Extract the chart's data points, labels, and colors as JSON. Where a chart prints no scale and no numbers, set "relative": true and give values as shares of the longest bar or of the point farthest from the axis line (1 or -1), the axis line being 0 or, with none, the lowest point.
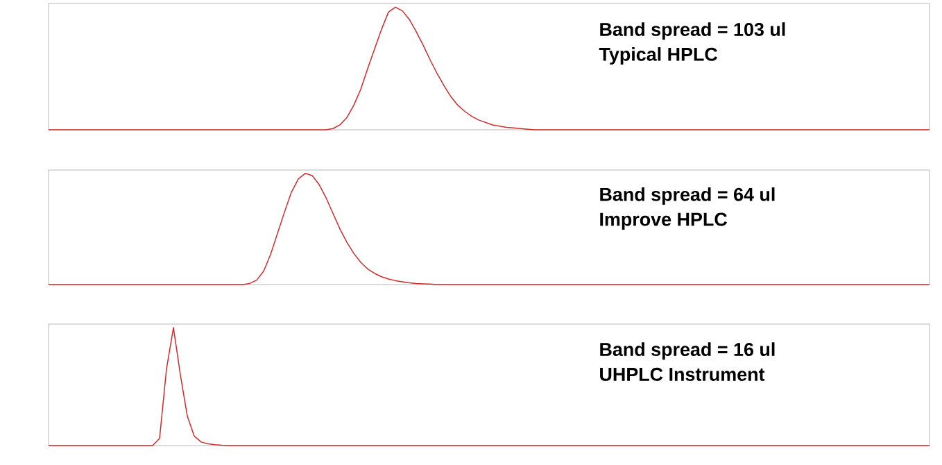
{
  "chart_data": [
    {
      "type": "line",
      "relative": true,
      "color": "#d42a2a",
      "categories": [
        null,
        null,
        null,
        null,
        null,
        null,
        null,
        null,
        null,
        null,
        null,
        null,
        null,
        null,
        null,
        null,
        null,
        null,
        null,
        null,
        null,
        null,
        null,
        null,
        null,
        null,
        null,
        null,
        null,
        null,
        null,
        null,
        null,
        null,
        null,
        null,
        null,
        null,
        null,
        null,
        null,
        null,
        null,
        null,
        null,
        null,
        null,
        null,
        null,
        null,
        null,
        null,
        null,
        null,
        null,
        null,
        null,
        null,
        null,
        null,
        null,
        null,
        null,
        null,
        null,
        null,
        null,
        null,
        null,
        null,
        null,
        null,
        null,
        null,
        null,
        null,
        null,
        null,
        null,
        null,
        null,
        null,
        null,
        null,
        null,
        null,
        null,
        null,
        null,
        null,
        null,
        null,
        null,
        null,
        null,
        null,
        null,
        null,
        null,
        null,
        null,
        null,
        null,
        null,
        null,
        null,
        null,
        null,
        null,
        null,
        null,
        null,
        null,
        null,
        null,
        null,
        null,
        null,
        null,
        null,
        null,
        null,
        null,
        null,
        null,
        null,
        null,
        null
      ],
      "values": [
        0,
        0,
        0,
        0,
        0,
        0,
        0,
        0,
        0,
        0,
        0,
        0,
        0,
        0,
        0,
        0,
        0,
        0,
        0,
        0,
        0,
        0,
        0,
        0,
        0,
        0,
        0,
        0,
        0,
        0,
        0,
        0,
        0,
        0,
        0,
        0,
        0,
        0,
        0,
        0,
        0,
        0.01,
        0.04,
        0.1,
        0.2,
        0.33,
        0.5,
        0.66,
        0.82,
        0.96,
        1,
        0.97,
        0.9,
        0.8,
        0.69,
        0.57,
        0.46,
        0.36,
        0.27,
        0.2,
        0.15,
        0.11,
        0.08,
        0.06,
        0.04,
        0.03,
        0.02,
        0.015,
        0.01,
        0.005,
        0,
        0,
        0,
        0,
        0,
        0,
        0,
        0,
        0,
        0,
        0,
        0,
        0,
        0,
        0,
        0,
        0,
        0,
        0,
        0,
        0,
        0,
        0,
        0,
        0,
        0,
        0,
        0,
        0,
        0,
        0,
        0,
        0,
        0,
        0,
        0,
        0,
        0,
        0,
        0,
        0,
        0,
        0,
        0,
        0,
        0,
        0,
        0,
        0,
        0,
        0,
        0,
        0,
        0,
        0,
        0,
        0,
        0
      ],
      "annotations": [
        "Band spread = 103 ul",
        "Typical HPLC"
      ]
    },
    {
      "type": "line",
      "relative": true,
      "color": "#d42a2a",
      "categories": [
        null,
        null,
        null,
        null,
        null,
        null,
        null,
        null,
        null,
        null,
        null,
        null,
        null,
        null,
        null,
        null,
        null,
        null,
        null,
        null,
        null,
        null,
        null,
        null,
        null,
        null,
        null,
        null,
        null,
        null,
        null,
        null,
        null,
        null,
        null,
        null,
        null,
        null,
        null,
        null,
        null,
        null,
        null,
        null,
        null,
        null,
        null,
        null,
        null,
        null,
        null,
        null,
        null,
        null,
        null,
        null,
        null,
        null,
        null,
        null,
        null,
        null,
        null,
        null,
        null,
        null,
        null,
        null,
        null,
        null,
        null,
        null,
        null,
        null,
        null,
        null,
        null,
        null,
        null,
        null,
        null,
        null,
        null,
        null,
        null,
        null,
        null,
        null,
        null,
        null,
        null,
        null,
        null,
        null,
        null,
        null,
        null,
        null,
        null,
        null,
        null,
        null,
        null,
        null,
        null,
        null,
        null,
        null,
        null,
        null,
        null,
        null,
        null,
        null,
        null,
        null,
        null,
        null,
        null,
        null,
        null,
        null,
        null,
        null,
        null,
        null,
        null,
        null
      ],
      "values": [
        0,
        0,
        0,
        0,
        0,
        0,
        0,
        0,
        0,
        0,
        0,
        0,
        0,
        0,
        0,
        0,
        0,
        0,
        0,
        0,
        0,
        0,
        0,
        0,
        0,
        0,
        0,
        0,
        0,
        0.01,
        0.04,
        0.12,
        0.27,
        0.46,
        0.65,
        0.83,
        0.95,
        1,
        0.98,
        0.9,
        0.78,
        0.64,
        0.5,
        0.38,
        0.28,
        0.2,
        0.14,
        0.1,
        0.07,
        0.05,
        0.035,
        0.025,
        0.015,
        0.01,
        0.007,
        0.005,
        0,
        0,
        0,
        0,
        0,
        0,
        0,
        0,
        0,
        0,
        0,
        0,
        0,
        0,
        0,
        0,
        0,
        0,
        0,
        0,
        0,
        0,
        0,
        0,
        0,
        0,
        0,
        0,
        0,
        0,
        0,
        0,
        0,
        0,
        0,
        0,
        0,
        0,
        0,
        0,
        0,
        0,
        0,
        0,
        0,
        0,
        0,
        0,
        0,
        0,
        0,
        0,
        0,
        0,
        0,
        0,
        0,
        0,
        0,
        0,
        0,
        0,
        0,
        0,
        0,
        0,
        0,
        0,
        0,
        0,
        0,
        0
      ],
      "annotations": [
        "Band spread = 64 ul",
        "Improve HPLC"
      ]
    },
    {
      "type": "line",
      "relative": true,
      "color": "#d42a2a",
      "categories": [
        null,
        null,
        null,
        null,
        null,
        null,
        null,
        null,
        null,
        null,
        null,
        null,
        null,
        null,
        null,
        null,
        null,
        null,
        null,
        null,
        null,
        null,
        null,
        null,
        null,
        null,
        null,
        null,
        null,
        null,
        null,
        null,
        null,
        null,
        null,
        null,
        null,
        null,
        null,
        null,
        null,
        null,
        null,
        null,
        null,
        null,
        null,
        null,
        null,
        null,
        null,
        null,
        null,
        null,
        null,
        null,
        null,
        null,
        null,
        null,
        null,
        null,
        null,
        null,
        null,
        null,
        null,
        null,
        null,
        null,
        null,
        null,
        null,
        null,
        null,
        null,
        null,
        null,
        null,
        null,
        null,
        null,
        null,
        null,
        null,
        null,
        null,
        null,
        null,
        null,
        null,
        null,
        null,
        null,
        null,
        null,
        null,
        null,
        null,
        null,
        null,
        null,
        null,
        null,
        null,
        null,
        null,
        null,
        null,
        null,
        null,
        null,
        null,
        null,
        null,
        null,
        null,
        null,
        null,
        null,
        null,
        null,
        null,
        null,
        null,
        null,
        null,
        null
      ],
      "values": [
        0,
        0,
        0,
        0,
        0,
        0,
        0,
        0,
        0,
        0,
        0,
        0,
        0,
        0,
        0,
        0,
        0.06,
        0.65,
        1,
        0.6,
        0.25,
        0.08,
        0.03,
        0.015,
        0.008,
        0.003,
        0,
        0,
        0,
        0,
        0,
        0,
        0,
        0,
        0,
        0,
        0,
        0,
        0,
        0,
        0,
        0,
        0,
        0,
        0,
        0,
        0,
        0,
        0,
        0,
        0,
        0,
        0,
        0,
        0,
        0,
        0,
        0,
        0,
        0,
        0,
        0,
        0,
        0,
        0,
        0,
        0,
        0,
        0,
        0,
        0,
        0,
        0,
        0,
        0,
        0,
        0,
        0,
        0,
        0,
        0,
        0,
        0,
        0,
        0,
        0,
        0,
        0,
        0,
        0,
        0,
        0,
        0,
        0,
        0,
        0,
        0,
        0,
        0,
        0,
        0,
        0,
        0,
        0,
        0,
        0,
        0,
        0,
        0,
        0,
        0,
        0,
        0,
        0,
        0,
        0,
        0,
        0,
        0,
        0,
        0,
        0,
        0,
        0,
        0,
        0,
        0,
        0
      ],
      "annotations": [
        "Band spread = 16 ul",
        "UHPLC Instrument"
      ]
    }
  ]
}
